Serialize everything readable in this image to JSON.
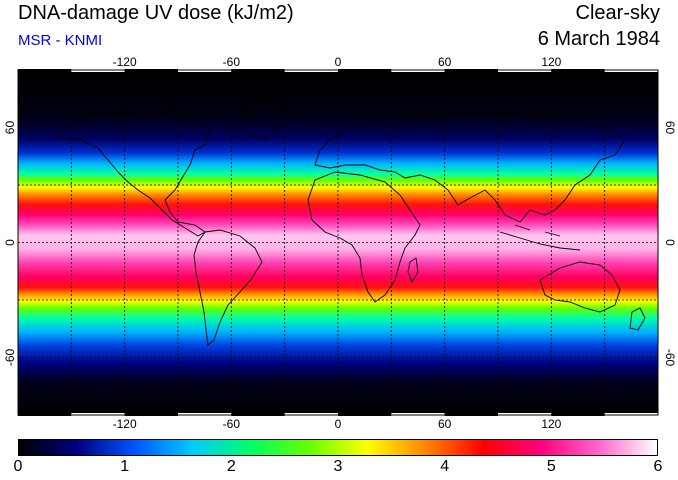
{
  "header": {
    "title": "DNA-damage UV dose (kJ/m2)",
    "subtitle": "MSR - KNMI",
    "condition": "Clear-sky",
    "date": "6 March 1984"
  },
  "map": {
    "lon_ticks": [
      "-120",
      "-60",
      "0",
      "60",
      "120"
    ],
    "lon_tick_values": [
      -120,
      -60,
      0,
      60,
      120
    ],
    "lat_ticks": [
      "60",
      "0",
      "-60"
    ],
    "lat_tick_values": [
      60,
      0,
      -60
    ],
    "gridlines": true,
    "grid_spacing_deg": 30,
    "lon_range": [
      -180,
      180
    ],
    "lat_range": [
      -90,
      90
    ]
  },
  "colorbar": {
    "ticks": [
      "0",
      "1",
      "2",
      "3",
      "4",
      "5",
      "6"
    ],
    "range": [
      0,
      6
    ],
    "colors": [
      "#000000",
      "#000080",
      "#0055ff",
      "#00ccff",
      "#00ff66",
      "#66ff00",
      "#ffff00",
      "#ff8800",
      "#ff0000",
      "#ff0080",
      "#ff66cc",
      "#ffffff"
    ]
  }
}
